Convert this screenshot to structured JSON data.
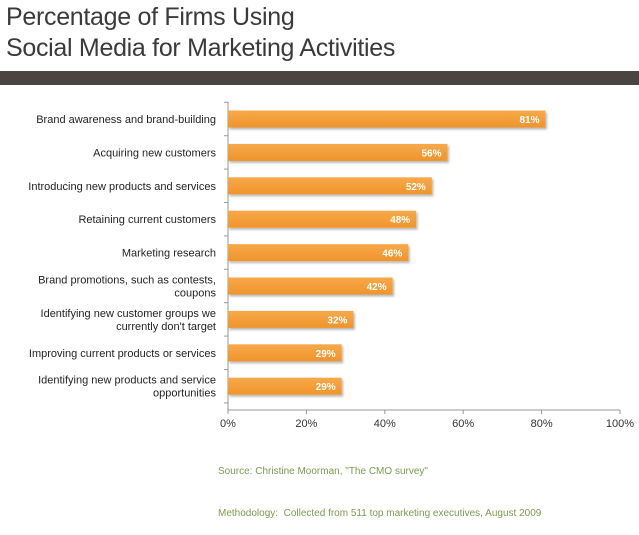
{
  "title_lines": [
    "Percentage of Firms Using",
    "Social Media for Marketing Activities"
  ],
  "source_lines": [
    "Source: Christine Moorman, \"The CMO survey\"",
    "Methodology:  Collected from 511 top marketing executives, August 2009"
  ],
  "colors": {
    "bar": "#f0942b",
    "rule": "#4a4540",
    "title": "#3a3a3a",
    "source": "#7c9a50",
    "axis": "#999999"
  },
  "chart_data": {
    "type": "bar",
    "orientation": "horizontal",
    "title": "Percentage of Firms Using Social Media for Marketing Activities",
    "categories": [
      [
        "Brand awareness and brand-building"
      ],
      [
        "Acquiring new customers"
      ],
      [
        "Introducing new products and services"
      ],
      [
        "Retaining current customers"
      ],
      [
        "Marketing research"
      ],
      [
        "Brand promotions, such as contests,",
        "coupons"
      ],
      [
        "Identifying new customer groups we",
        "currently don't target"
      ],
      [
        "Improving current products or services"
      ],
      [
        "Identifying new products and service",
        "opportunities"
      ]
    ],
    "values": [
      81,
      56,
      52,
      48,
      46,
      42,
      32,
      29,
      29
    ],
    "data_labels": [
      "81%",
      "56%",
      "52%",
      "48%",
      "46%",
      "42%",
      "32%",
      "29%",
      "29%"
    ],
    "xlim": [
      0,
      100
    ],
    "xticks": [
      0,
      20,
      40,
      60,
      80,
      100
    ],
    "xtick_labels": [
      "0%",
      "20%",
      "40%",
      "60%",
      "80%",
      "100%"
    ],
    "grid": false,
    "legend": "none"
  }
}
